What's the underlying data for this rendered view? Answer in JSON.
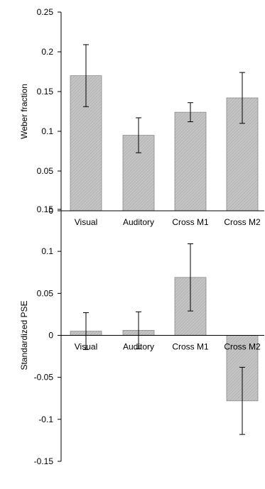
{
  "chart_data": [
    {
      "type": "bar",
      "categories": [
        "Visual",
        "Auditory",
        "Cross M1",
        "Cross M2"
      ],
      "values": [
        0.17,
        0.095,
        0.124,
        0.142
      ],
      "error_low": [
        0.131,
        0.073,
        0.112,
        0.11
      ],
      "error_high": [
        0.209,
        0.117,
        0.136,
        0.174
      ],
      "ylabel": "Weber fraction",
      "xlabel": "",
      "ylim": [
        0,
        0.25
      ],
      "yticks": [
        0,
        0.05,
        0.1,
        0.15,
        0.2,
        0.25
      ],
      "ytick_labels": [
        "0",
        "0.05",
        "0.1",
        "0.15",
        "0.2",
        "0.25"
      ],
      "grid": false,
      "bar_color": "#bdbdbd"
    },
    {
      "type": "bar",
      "categories": [
        "Visual",
        "Auditory",
        "Cross M1",
        "Cross M2"
      ],
      "values": [
        0.005,
        0.006,
        0.069,
        -0.078
      ],
      "error_low": [
        -0.017,
        -0.016,
        0.029,
        -0.118
      ],
      "error_high": [
        0.027,
        0.028,
        0.109,
        -0.038
      ],
      "ylabel": "Standardized PSE",
      "xlabel": "",
      "ylim": [
        -0.15,
        0.15
      ],
      "yticks": [
        -0.15,
        -0.1,
        -0.05,
        0,
        0.05,
        0.1,
        0.15
      ],
      "ytick_labels": [
        "-0.15",
        "-0.1",
        "-0.05",
        "0",
        "0.05",
        "0.1",
        "0.15"
      ],
      "grid": false,
      "bar_color": "#bdbdbd"
    }
  ]
}
